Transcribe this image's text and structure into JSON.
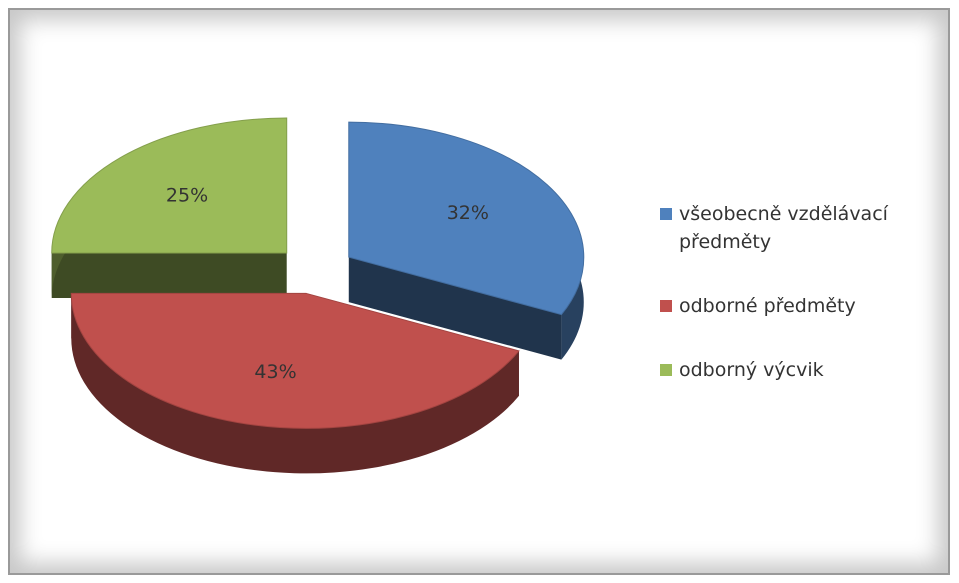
{
  "chart_data": {
    "type": "pie",
    "categories": [
      "všeobecně vzdělávací předměty",
      "odborné předměty",
      "odborný výcvik"
    ],
    "values": [
      32,
      43,
      25
    ],
    "value_labels": [
      "32%",
      "43%",
      "25%"
    ],
    "colors": [
      "#4f81bd",
      "#c0504d",
      "#9bbb59"
    ],
    "legend": "right"
  }
}
